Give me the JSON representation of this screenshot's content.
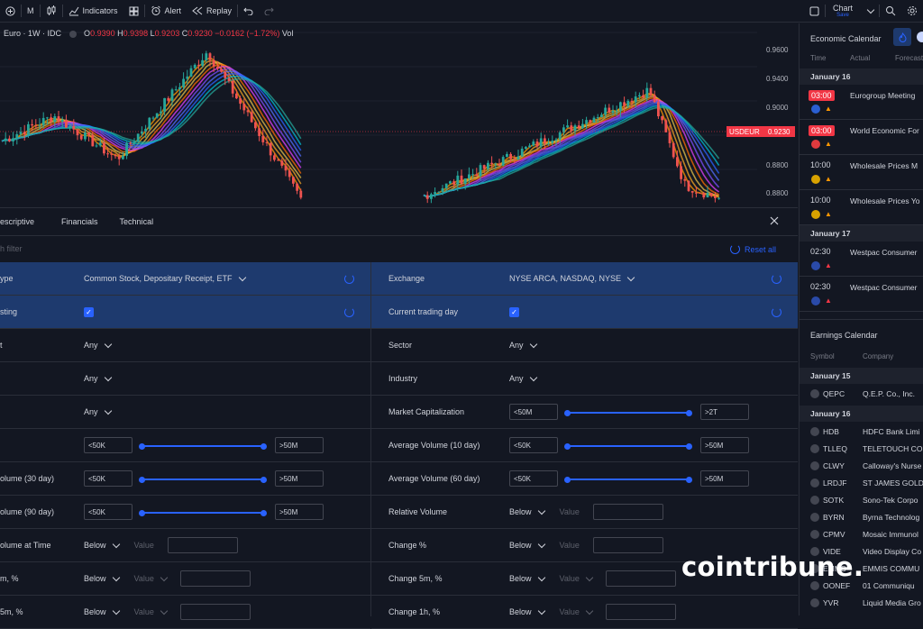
{
  "toolbar": {
    "interval": "M",
    "indicators_label": "Indicators",
    "alert_label": "Alert",
    "replay_label": "Replay",
    "chart_label": "Chart",
    "chart_sub": "Save"
  },
  "legend": {
    "symbol": "Euro · 1W · IDC",
    "o_label": "O",
    "o": "0.9390",
    "h_label": "H",
    "h": "0.9398",
    "l_label": "L",
    "l": "0.9203",
    "c_label": "C",
    "c": "0.9230",
    "change": "−0.0162 (−1.72%)",
    "vol": "Vol"
  },
  "chart_data": {
    "type": "candlestick",
    "y_ticks": [
      "0.9600",
      "0.9400",
      "0.9000",
      "0.8800"
    ],
    "price_label": "USDEUR",
    "price_value": "0.9230",
    "ylim": [
      0.872,
      0.968
    ]
  },
  "screener": {
    "tabs": [
      "escriptive",
      "Financials",
      "Technical"
    ],
    "search_placeholder": "h filter",
    "reset_label": "Reset all",
    "left_rows": [
      {
        "label": "ype",
        "kind": "select",
        "value": "Common Stock, Depositary Receipt, ETF",
        "selected": true,
        "reset": true
      },
      {
        "label": "sting",
        "kind": "check",
        "selected": true,
        "reset": true
      },
      {
        "label": "t",
        "kind": "select",
        "value": "Any"
      },
      {
        "label": "",
        "kind": "select",
        "value": "Any"
      },
      {
        "label": "",
        "kind": "select",
        "value": "Any"
      },
      {
        "label": "",
        "kind": "range",
        "min": "<50K",
        "max": ">50M"
      },
      {
        "label": "olume (30 day)",
        "kind": "range",
        "min": "<50K",
        "max": ">50M"
      },
      {
        "label": "olume (90 day)",
        "kind": "range",
        "min": "<50K",
        "max": ">50M"
      },
      {
        "label": "olume at Time",
        "kind": "cond",
        "op": "Below",
        "ph": "Value"
      },
      {
        "label": "m, %",
        "kind": "cond",
        "op": "Below",
        "ph": "Value"
      },
      {
        "label": "5m, %",
        "kind": "cond",
        "op": "Below",
        "ph": "Value"
      }
    ],
    "right_rows": [
      {
        "label": "Exchange",
        "kind": "select",
        "value": "NYSE ARCA, NASDAQ, NYSE",
        "selected": true,
        "reset": true
      },
      {
        "label": "Current trading day",
        "kind": "check",
        "selected": true,
        "reset": true
      },
      {
        "label": "Sector",
        "kind": "select",
        "value": "Any"
      },
      {
        "label": "Industry",
        "kind": "select",
        "value": "Any"
      },
      {
        "label": "Market Capitalization",
        "kind": "range",
        "min": "<50M",
        "max": ">2T"
      },
      {
        "label": "Average Volume (10 day)",
        "kind": "range",
        "min": "<50K",
        "max": ">50M"
      },
      {
        "label": "Average Volume (60 day)",
        "kind": "range",
        "min": "<50K",
        "max": ">50M"
      },
      {
        "label": "Relative Volume",
        "kind": "cond",
        "op": "Below",
        "ph": "Value"
      },
      {
        "label": "Change %",
        "kind": "cond",
        "op": "Below",
        "ph": "Value"
      },
      {
        "label": "Change 5m, %",
        "kind": "cond",
        "op": "Below",
        "ph": "Value"
      },
      {
        "label": "Change 1h, %",
        "kind": "cond",
        "op": "Below",
        "ph": "Value"
      }
    ]
  },
  "economic": {
    "title": "Economic Calendar",
    "cols": [
      "Time",
      "Actual",
      "Forecast"
    ],
    "days": [
      {
        "day": "January 16",
        "events": [
          {
            "time": "03:00",
            "highlight": true,
            "name": "Eurogroup Meeting",
            "flag": "eu-flag-icon",
            "flag_color": "#2b5fd1"
          },
          {
            "time": "03:00",
            "highlight": true,
            "name": "World Economic For",
            "flag": "swiss-flag-icon",
            "flag_color": "#e03a3e"
          },
          {
            "time": "10:00",
            "highlight": false,
            "name": "Wholesale Prices M",
            "flag": "germany-flag-icon",
            "flag_color": "#d8a200"
          },
          {
            "time": "10:00",
            "highlight": false,
            "name": "Wholesale Prices Yo",
            "flag": "germany-flag-icon",
            "flag_color": "#d8a200"
          }
        ]
      },
      {
        "day": "January 17",
        "events": [
          {
            "time": "02:30",
            "highlight": false,
            "name": "Westpac Consumer",
            "flag": "australia-flag-icon",
            "flag_color": "#2a4aa8"
          },
          {
            "time": "02:30",
            "highlight": false,
            "name": "Westpac Consumer",
            "flag": "australia-flag-icon",
            "flag_color": "#2a4aa8"
          }
        ]
      }
    ]
  },
  "earnings": {
    "title": "Earnings Calendar",
    "cols": [
      "Symbol",
      "Company"
    ],
    "day1": "January 15",
    "day1_rows": [
      {
        "sym": "QEPC",
        "co": "Q.E.P. Co., Inc."
      }
    ],
    "day2": "January 16",
    "day2_rows": [
      {
        "sym": "HDB",
        "co": "HDFC Bank Limi"
      },
      {
        "sym": "TLLEQ",
        "co": "TELETOUCH CO"
      },
      {
        "sym": "CLWY",
        "co": "Calloway's Nurse"
      },
      {
        "sym": "LRDJF",
        "co": "ST JAMES GOLD"
      },
      {
        "sym": "SOTK",
        "co": "Sono-Tek Corpo"
      },
      {
        "sym": "BYRN",
        "co": "Byrna Technolog"
      },
      {
        "sym": "CPMV",
        "co": "Mosaic Immunol"
      },
      {
        "sym": "VIDE",
        "co": "Video Display Co"
      },
      {
        "sym": "EMMS",
        "co": "EMMIS COMMU"
      },
      {
        "sym": "OONEF",
        "co": "01 Communiqu"
      },
      {
        "sym": "YVR",
        "co": "Liquid Media Gro"
      }
    ]
  },
  "watermark": "cointribune."
}
